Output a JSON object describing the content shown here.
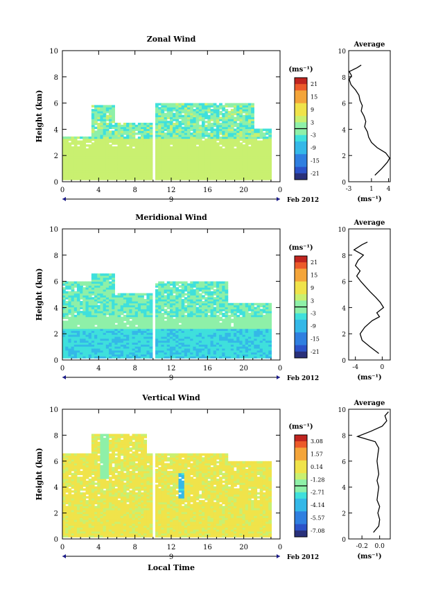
{
  "chart_data": [
    {
      "type": "heatmap",
      "title": "Zonal Wind",
      "ylabel": "Height (km)",
      "xlabel": "",
      "x_ticks": [
        "0",
        "4",
        "8",
        "12",
        "16",
        "20",
        "0"
      ],
      "y_ticks": [
        "0",
        "2",
        "4",
        "6",
        "8",
        "10"
      ],
      "xlim": [
        0,
        24
      ],
      "ylim": [
        0,
        10
      ],
      "date_label": "9",
      "month_label": "Feb 2012",
      "colorbar": {
        "unit": "(ms⁻¹)",
        "ticks": [
          "21",
          "15",
          "9",
          "3",
          "-3",
          "-9",
          "-15",
          "-21"
        ],
        "range": [
          -24,
          24
        ]
      },
      "profile": {
        "title": "Average",
        "xlabel": "(ms⁻¹)",
        "x_ticks": [
          "-3",
          "1",
          "4"
        ],
        "xlim": [
          -3,
          4.3
        ],
        "y_ticks": [
          "0",
          "2",
          "4",
          "6",
          "8",
          "10"
        ],
        "height": [
          0.5,
          1.0,
          1.5,
          1.8,
          2.2,
          2.6,
          3.0,
          3.4,
          3.8,
          4.2,
          4.6,
          5.0,
          5.4,
          5.8,
          6.2,
          6.6,
          7.0,
          7.4,
          7.8,
          8.1,
          8.4,
          8.7,
          8.9
        ],
        "value": [
          1.6,
          2.8,
          3.8,
          4.2,
          3.5,
          2.0,
          1.0,
          0.5,
          0.3,
          -0.2,
          0.0,
          -0.3,
          -0.8,
          -0.6,
          -1.0,
          -1.2,
          -1.8,
          -2.6,
          -2.9,
          -2.5,
          -2.9,
          -1.5,
          -0.8
        ]
      }
    },
    {
      "type": "heatmap",
      "title": "Meridional Wind",
      "ylabel": "Height (km)",
      "xlabel": "",
      "x_ticks": [
        "0",
        "4",
        "8",
        "12",
        "16",
        "20",
        "0"
      ],
      "y_ticks": [
        "0",
        "2",
        "4",
        "6",
        "8",
        "10"
      ],
      "xlim": [
        0,
        24
      ],
      "ylim": [
        0,
        10
      ],
      "date_label": "9",
      "month_label": "Feb 2012",
      "colorbar": {
        "unit": "(ms⁻¹)",
        "ticks": [
          "21",
          "15",
          "9",
          "3",
          "-3",
          "-9",
          "-15",
          "-21"
        ],
        "range": [
          -24,
          24
        ]
      },
      "profile": {
        "title": "Average",
        "xlabel": "(ms⁻¹)",
        "x_ticks": [
          "-4",
          "0"
        ],
        "xlim": [
          -5,
          1.2
        ],
        "y_ticks": [
          "0",
          "2",
          "4",
          "6",
          "8",
          "10"
        ],
        "height": [
          0.5,
          1.0,
          1.5,
          2.0,
          2.5,
          3.0,
          3.3,
          3.6,
          4.0,
          4.4,
          4.8,
          5.2,
          5.6,
          6.0,
          6.4,
          6.8,
          7.2,
          7.6,
          8.0,
          8.4,
          8.8,
          9.0
        ],
        "value": [
          -0.5,
          -1.8,
          -3.0,
          -3.3,
          -2.6,
          -1.5,
          -0.4,
          -0.8,
          0.2,
          -0.3,
          -1.0,
          -1.8,
          -2.5,
          -3.2,
          -3.8,
          -3.3,
          -4.0,
          -3.6,
          -2.8,
          -4.2,
          -3.0,
          -2.2
        ]
      }
    },
    {
      "type": "heatmap",
      "title": "Vertical Wind",
      "ylabel": "Height (km)",
      "xlabel": "Local Time",
      "x_ticks": [
        "0",
        "4",
        "8",
        "12",
        "16",
        "20",
        "0"
      ],
      "y_ticks": [
        "0",
        "2",
        "4",
        "6",
        "8",
        "10"
      ],
      "xlim": [
        0,
        24
      ],
      "ylim": [
        0,
        10
      ],
      "date_label": "9",
      "month_label": "Feb 2012",
      "colorbar": {
        "unit": "(ms⁻¹)",
        "ticks": [
          "3.08",
          "1.57",
          "0.14",
          "-1.28",
          "-2.71",
          "-4.14",
          "-5.57",
          "-7.08"
        ],
        "range": [
          -7.8,
          3.8
        ]
      },
      "profile": {
        "title": "Average",
        "xlabel": "(ms⁻¹)",
        "x_ticks": [
          "-0.2",
          "0.0"
        ],
        "xlim": [
          -0.35,
          0.12
        ],
        "y_ticks": [
          "0",
          "2",
          "4",
          "6",
          "8",
          "10"
        ],
        "height": [
          0.5,
          1.0,
          1.5,
          2.0,
          2.5,
          3.0,
          3.5,
          4.0,
          4.5,
          5.0,
          5.5,
          6.0,
          6.5,
          7.0,
          7.5,
          7.9,
          8.3,
          8.7,
          9.1,
          9.5,
          9.8
        ],
        "value": [
          -0.07,
          -0.01,
          0.0,
          -0.02,
          0.0,
          -0.03,
          -0.02,
          -0.01,
          -0.03,
          -0.01,
          -0.02,
          -0.03,
          -0.02,
          -0.01,
          -0.05,
          -0.25,
          -0.1,
          0.03,
          0.08,
          0.06,
          0.1
        ]
      }
    }
  ]
}
